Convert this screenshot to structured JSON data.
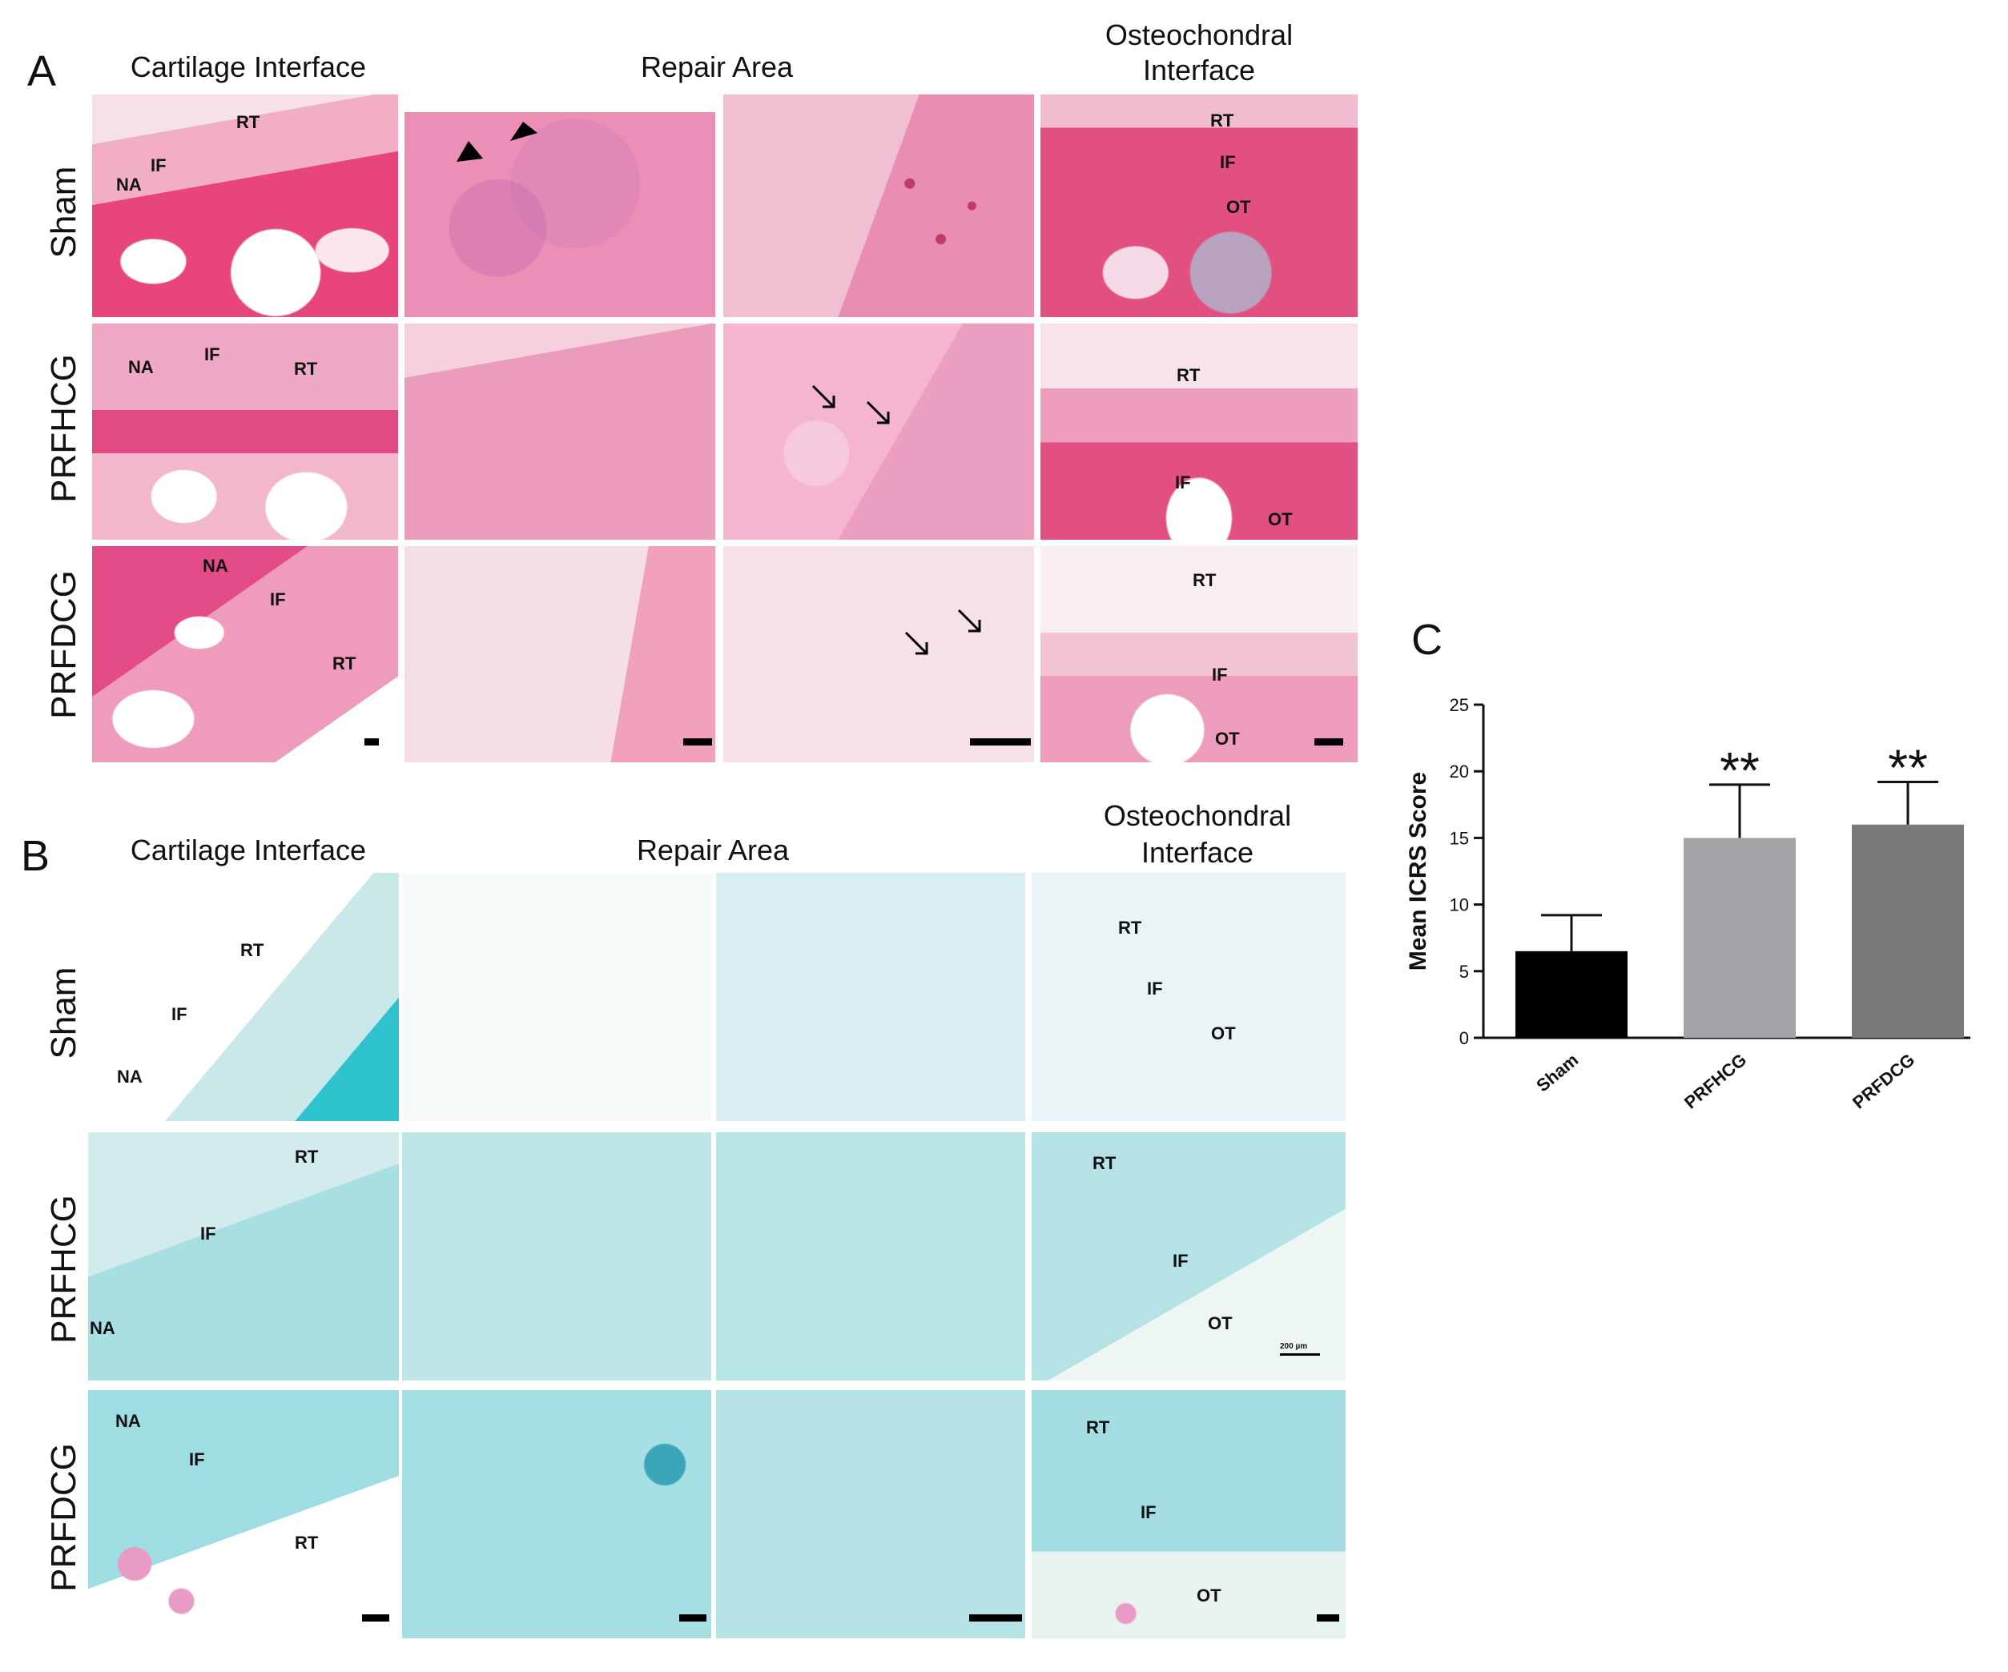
{
  "panel_a": {
    "letter": "A",
    "col_headers": [
      "Cartilage Interface",
      "Repair Area",
      "Osteochondral Interface"
    ],
    "rows": [
      "Sham",
      "PRFHCG",
      "PRFDCG"
    ]
  },
  "panel_b": {
    "letter": "B",
    "col_headers": [
      "Cartilage Interface",
      "Repair Area",
      "Osteochondral Interface"
    ],
    "rows": [
      "Sham",
      "PRFHCG",
      "PRFDCG"
    ],
    "scale_text": "200 µm"
  },
  "labels": {
    "na": "NA",
    "if": "IF",
    "rt": "RT",
    "ot": "OT"
  },
  "panel_c": {
    "letter": "C",
    "significance": "**"
  },
  "chart_data": {
    "type": "bar",
    "categories": [
      "Sham",
      "PRFHCG",
      "PRFDCG"
    ],
    "values": [
      6.5,
      15,
      16
    ],
    "errors": [
      2.7,
      4,
      3.2
    ],
    "colors": [
      "#000000",
      "#a3a3a7",
      "#7a7a7a"
    ],
    "significance": [
      "",
      "**",
      "**"
    ],
    "ylabel": "Mean ICRS Score",
    "ylim": [
      0,
      25
    ],
    "yticks": [
      0,
      5,
      10,
      15,
      20,
      25
    ]
  }
}
